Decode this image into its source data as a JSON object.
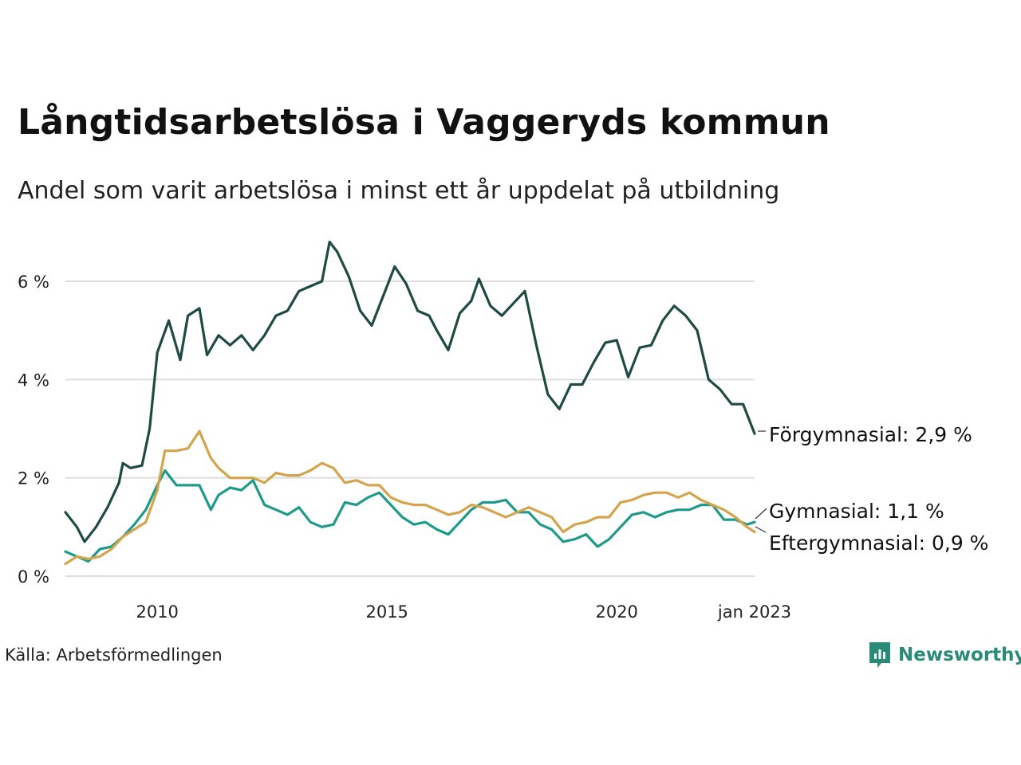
{
  "header": {
    "title": "Långtidsarbetslösa i Vaggeryds kommun",
    "subtitle": "Andel som varit arbetslösa i minst ett år uppdelat på utbildning"
  },
  "footer": {
    "source": "Källa: Arbetsförmedlingen",
    "brand": "Newsworthy",
    "brand_icon": "newsworthy-logo-icon"
  },
  "colors": {
    "forgymnasial": "#1f4a44",
    "gymnasial": "#1e9a8a",
    "eftergymnasial": "#d4a44c",
    "grid": "#dddddd",
    "brand": "#2a8a78"
  },
  "chart_data": {
    "type": "line",
    "x_unit": "month",
    "x_start": "2008-01",
    "x_end": "2023-01",
    "x_ticks": [
      {
        "x": "2010-01",
        "label": "2010"
      },
      {
        "x": "2015-01",
        "label": "2015"
      },
      {
        "x": "2020-01",
        "label": "2020"
      },
      {
        "x": "2023-01",
        "label": "jan 2023"
      }
    ],
    "y_ticks": [
      {
        "y": 0,
        "label": "0 %"
      },
      {
        "y": 2,
        "label": "2 %"
      },
      {
        "y": 4,
        "label": "4 %"
      },
      {
        "y": 6,
        "label": "6 %"
      }
    ],
    "ylim": [
      0,
      7
    ],
    "grid": true,
    "legend": "end-of-line labels",
    "series": [
      {
        "name": "Förgymnasial",
        "end_label": "Förgymnasial: 2,9 %",
        "points": [
          [
            "2008-01",
            1.3
          ],
          [
            "2008-04",
            1.0
          ],
          [
            "2008-06",
            0.7
          ],
          [
            "2008-09",
            1.0
          ],
          [
            "2008-12",
            1.4
          ],
          [
            "2009-03",
            1.9
          ],
          [
            "2009-04",
            2.3
          ],
          [
            "2009-06",
            2.2
          ],
          [
            "2009-09",
            2.25
          ],
          [
            "2009-11",
            3.0
          ],
          [
            "2010-01",
            4.55
          ],
          [
            "2010-04",
            5.2
          ],
          [
            "2010-07",
            4.4
          ],
          [
            "2010-09",
            5.3
          ],
          [
            "2010-12",
            5.45
          ],
          [
            "2011-02",
            4.5
          ],
          [
            "2011-05",
            4.9
          ],
          [
            "2011-08",
            4.7
          ],
          [
            "2011-11",
            4.9
          ],
          [
            "2012-02",
            4.6
          ],
          [
            "2012-05",
            4.9
          ],
          [
            "2012-08",
            5.3
          ],
          [
            "2012-11",
            5.4
          ],
          [
            "2013-02",
            5.8
          ],
          [
            "2013-05",
            5.9
          ],
          [
            "2013-08",
            6.0
          ],
          [
            "2013-10",
            6.8
          ],
          [
            "2013-12",
            6.6
          ],
          [
            "2014-03",
            6.1
          ],
          [
            "2014-06",
            5.4
          ],
          [
            "2014-09",
            5.1
          ],
          [
            "2014-12",
            5.7
          ],
          [
            "2015-03",
            6.3
          ],
          [
            "2015-06",
            5.95
          ],
          [
            "2015-09",
            5.4
          ],
          [
            "2015-12",
            5.3
          ],
          [
            "2016-02",
            5.0
          ],
          [
            "2016-05",
            4.6
          ],
          [
            "2016-08",
            5.35
          ],
          [
            "2016-11",
            5.6
          ],
          [
            "2017-01",
            6.05
          ],
          [
            "2017-04",
            5.5
          ],
          [
            "2017-07",
            5.3
          ],
          [
            "2017-10",
            5.55
          ],
          [
            "2018-01",
            5.8
          ],
          [
            "2018-04",
            4.7
          ],
          [
            "2018-07",
            3.7
          ],
          [
            "2018-10",
            3.4
          ],
          [
            "2019-01",
            3.9
          ],
          [
            "2019-04",
            3.9
          ],
          [
            "2019-07",
            4.35
          ],
          [
            "2019-10",
            4.75
          ],
          [
            "2020-01",
            4.8
          ],
          [
            "2020-04",
            4.05
          ],
          [
            "2020-07",
            4.65
          ],
          [
            "2020-10",
            4.7
          ],
          [
            "2021-01",
            5.2
          ],
          [
            "2021-04",
            5.5
          ],
          [
            "2021-07",
            5.3
          ],
          [
            "2021-10",
            5.0
          ],
          [
            "2022-01",
            4.0
          ],
          [
            "2022-04",
            3.8
          ],
          [
            "2022-07",
            3.5
          ],
          [
            "2022-10",
            3.5
          ],
          [
            "2022-12",
            3.1
          ],
          [
            "2023-01",
            2.9
          ]
        ]
      },
      {
        "name": "Gymnasial",
        "end_label": "Gymnasial: 1,1 %",
        "points": [
          [
            "2008-01",
            0.5
          ],
          [
            "2008-04",
            0.4
          ],
          [
            "2008-07",
            0.3
          ],
          [
            "2008-10",
            0.55
          ],
          [
            "2009-01",
            0.6
          ],
          [
            "2009-04",
            0.8
          ],
          [
            "2009-07",
            1.05
          ],
          [
            "2009-10",
            1.35
          ],
          [
            "2010-01",
            1.85
          ],
          [
            "2010-03",
            2.15
          ],
          [
            "2010-06",
            1.85
          ],
          [
            "2010-09",
            1.85
          ],
          [
            "2010-12",
            1.85
          ],
          [
            "2011-03",
            1.35
          ],
          [
            "2011-05",
            1.65
          ],
          [
            "2011-08",
            1.8
          ],
          [
            "2011-11",
            1.75
          ],
          [
            "2012-02",
            1.95
          ],
          [
            "2012-05",
            1.45
          ],
          [
            "2012-08",
            1.35
          ],
          [
            "2012-11",
            1.25
          ],
          [
            "2013-02",
            1.4
          ],
          [
            "2013-05",
            1.1
          ],
          [
            "2013-08",
            1.0
          ],
          [
            "2013-11",
            1.05
          ],
          [
            "2014-02",
            1.5
          ],
          [
            "2014-05",
            1.45
          ],
          [
            "2014-08",
            1.6
          ],
          [
            "2014-11",
            1.7
          ],
          [
            "2015-02",
            1.45
          ],
          [
            "2015-05",
            1.2
          ],
          [
            "2015-08",
            1.05
          ],
          [
            "2015-11",
            1.1
          ],
          [
            "2016-02",
            0.95
          ],
          [
            "2016-05",
            0.85
          ],
          [
            "2016-08",
            1.1
          ],
          [
            "2016-11",
            1.35
          ],
          [
            "2017-02",
            1.5
          ],
          [
            "2017-05",
            1.5
          ],
          [
            "2017-08",
            1.55
          ],
          [
            "2017-11",
            1.3
          ],
          [
            "2018-02",
            1.3
          ],
          [
            "2018-05",
            1.05
          ],
          [
            "2018-08",
            0.95
          ],
          [
            "2018-11",
            0.7
          ],
          [
            "2019-02",
            0.75
          ],
          [
            "2019-05",
            0.85
          ],
          [
            "2019-08",
            0.6
          ],
          [
            "2019-11",
            0.75
          ],
          [
            "2020-02",
            1.0
          ],
          [
            "2020-05",
            1.25
          ],
          [
            "2020-08",
            1.3
          ],
          [
            "2020-11",
            1.2
          ],
          [
            "2021-02",
            1.3
          ],
          [
            "2021-05",
            1.35
          ],
          [
            "2021-08",
            1.35
          ],
          [
            "2021-11",
            1.45
          ],
          [
            "2022-02",
            1.45
          ],
          [
            "2022-05",
            1.15
          ],
          [
            "2022-08",
            1.15
          ],
          [
            "2022-11",
            1.05
          ],
          [
            "2023-01",
            1.1
          ]
        ]
      },
      {
        "name": "Eftergymnasial",
        "end_label": "Eftergymnasial: 0,9 %",
        "points": [
          [
            "2008-01",
            0.25
          ],
          [
            "2008-04",
            0.4
          ],
          [
            "2008-07",
            0.35
          ],
          [
            "2008-10",
            0.4
          ],
          [
            "2009-01",
            0.55
          ],
          [
            "2009-04",
            0.8
          ],
          [
            "2009-07",
            0.95
          ],
          [
            "2009-10",
            1.1
          ],
          [
            "2010-01",
            1.75
          ],
          [
            "2010-03",
            2.55
          ],
          [
            "2010-06",
            2.55
          ],
          [
            "2010-09",
            2.6
          ],
          [
            "2010-12",
            2.95
          ],
          [
            "2011-03",
            2.4
          ],
          [
            "2011-05",
            2.2
          ],
          [
            "2011-08",
            2.0
          ],
          [
            "2011-11",
            2.0
          ],
          [
            "2012-02",
            2.0
          ],
          [
            "2012-05",
            1.9
          ],
          [
            "2012-08",
            2.1
          ],
          [
            "2012-11",
            2.05
          ],
          [
            "2013-02",
            2.05
          ],
          [
            "2013-05",
            2.15
          ],
          [
            "2013-08",
            2.3
          ],
          [
            "2013-11",
            2.2
          ],
          [
            "2014-02",
            1.9
          ],
          [
            "2014-05",
            1.95
          ],
          [
            "2014-08",
            1.85
          ],
          [
            "2014-11",
            1.85
          ],
          [
            "2015-02",
            1.6
          ],
          [
            "2015-05",
            1.5
          ],
          [
            "2015-08",
            1.45
          ],
          [
            "2015-11",
            1.45
          ],
          [
            "2016-02",
            1.35
          ],
          [
            "2016-05",
            1.25
          ],
          [
            "2016-08",
            1.3
          ],
          [
            "2016-11",
            1.45
          ],
          [
            "2017-02",
            1.4
          ],
          [
            "2017-05",
            1.3
          ],
          [
            "2017-08",
            1.2
          ],
          [
            "2017-11",
            1.3
          ],
          [
            "2018-02",
            1.4
          ],
          [
            "2018-05",
            1.3
          ],
          [
            "2018-08",
            1.2
          ],
          [
            "2018-11",
            0.9
          ],
          [
            "2019-02",
            1.05
          ],
          [
            "2019-05",
            1.1
          ],
          [
            "2019-08",
            1.2
          ],
          [
            "2019-11",
            1.2
          ],
          [
            "2020-02",
            1.5
          ],
          [
            "2020-05",
            1.55
          ],
          [
            "2020-08",
            1.65
          ],
          [
            "2020-11",
            1.7
          ],
          [
            "2021-02",
            1.7
          ],
          [
            "2021-05",
            1.6
          ],
          [
            "2021-08",
            1.7
          ],
          [
            "2021-11",
            1.55
          ],
          [
            "2022-02",
            1.45
          ],
          [
            "2022-05",
            1.35
          ],
          [
            "2022-08",
            1.2
          ],
          [
            "2022-11",
            1.0
          ],
          [
            "2023-01",
            0.9
          ]
        ]
      }
    ]
  }
}
